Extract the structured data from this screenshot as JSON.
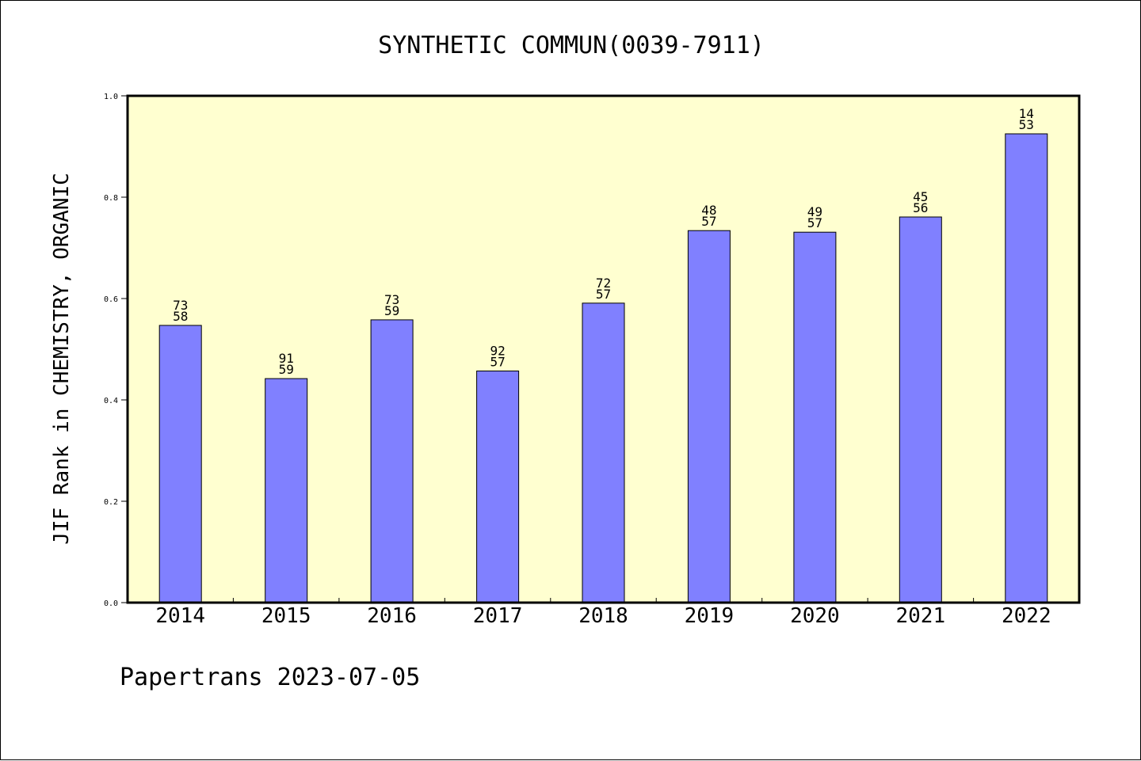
{
  "chart_data": {
    "type": "bar",
    "title": "SYNTHETIC COMMUN(0039-7911)",
    "ylabel": "JIF Rank in CHEMISTRY, ORGANIC",
    "xlabel": "",
    "categories": [
      "2014",
      "2015",
      "2016",
      "2017",
      "2018",
      "2019",
      "2020",
      "2021",
      "2022"
    ],
    "values": [
      0.547,
      0.442,
      0.558,
      0.457,
      0.591,
      0.734,
      0.731,
      0.761,
      0.925
    ],
    "bar_labels": [
      [
        "73",
        "58"
      ],
      [
        "91",
        "59"
      ],
      [
        "73",
        "59"
      ],
      [
        "92",
        "57"
      ],
      [
        "72",
        "57"
      ],
      [
        "48",
        "57"
      ],
      [
        "49",
        "57"
      ],
      [
        "45",
        "56"
      ],
      [
        "14",
        "53"
      ]
    ],
    "ylim": [
      0,
      1.0
    ],
    "yticks": [
      "0.0",
      "0.2",
      "0.4",
      "0.6",
      "0.8",
      "1.0"
    ],
    "grid": false,
    "colors": {
      "bar": "#8080ff",
      "plot_background": "#ffffd0",
      "axis": "#000000"
    },
    "footer": "Papertrans 2023-07-05"
  }
}
